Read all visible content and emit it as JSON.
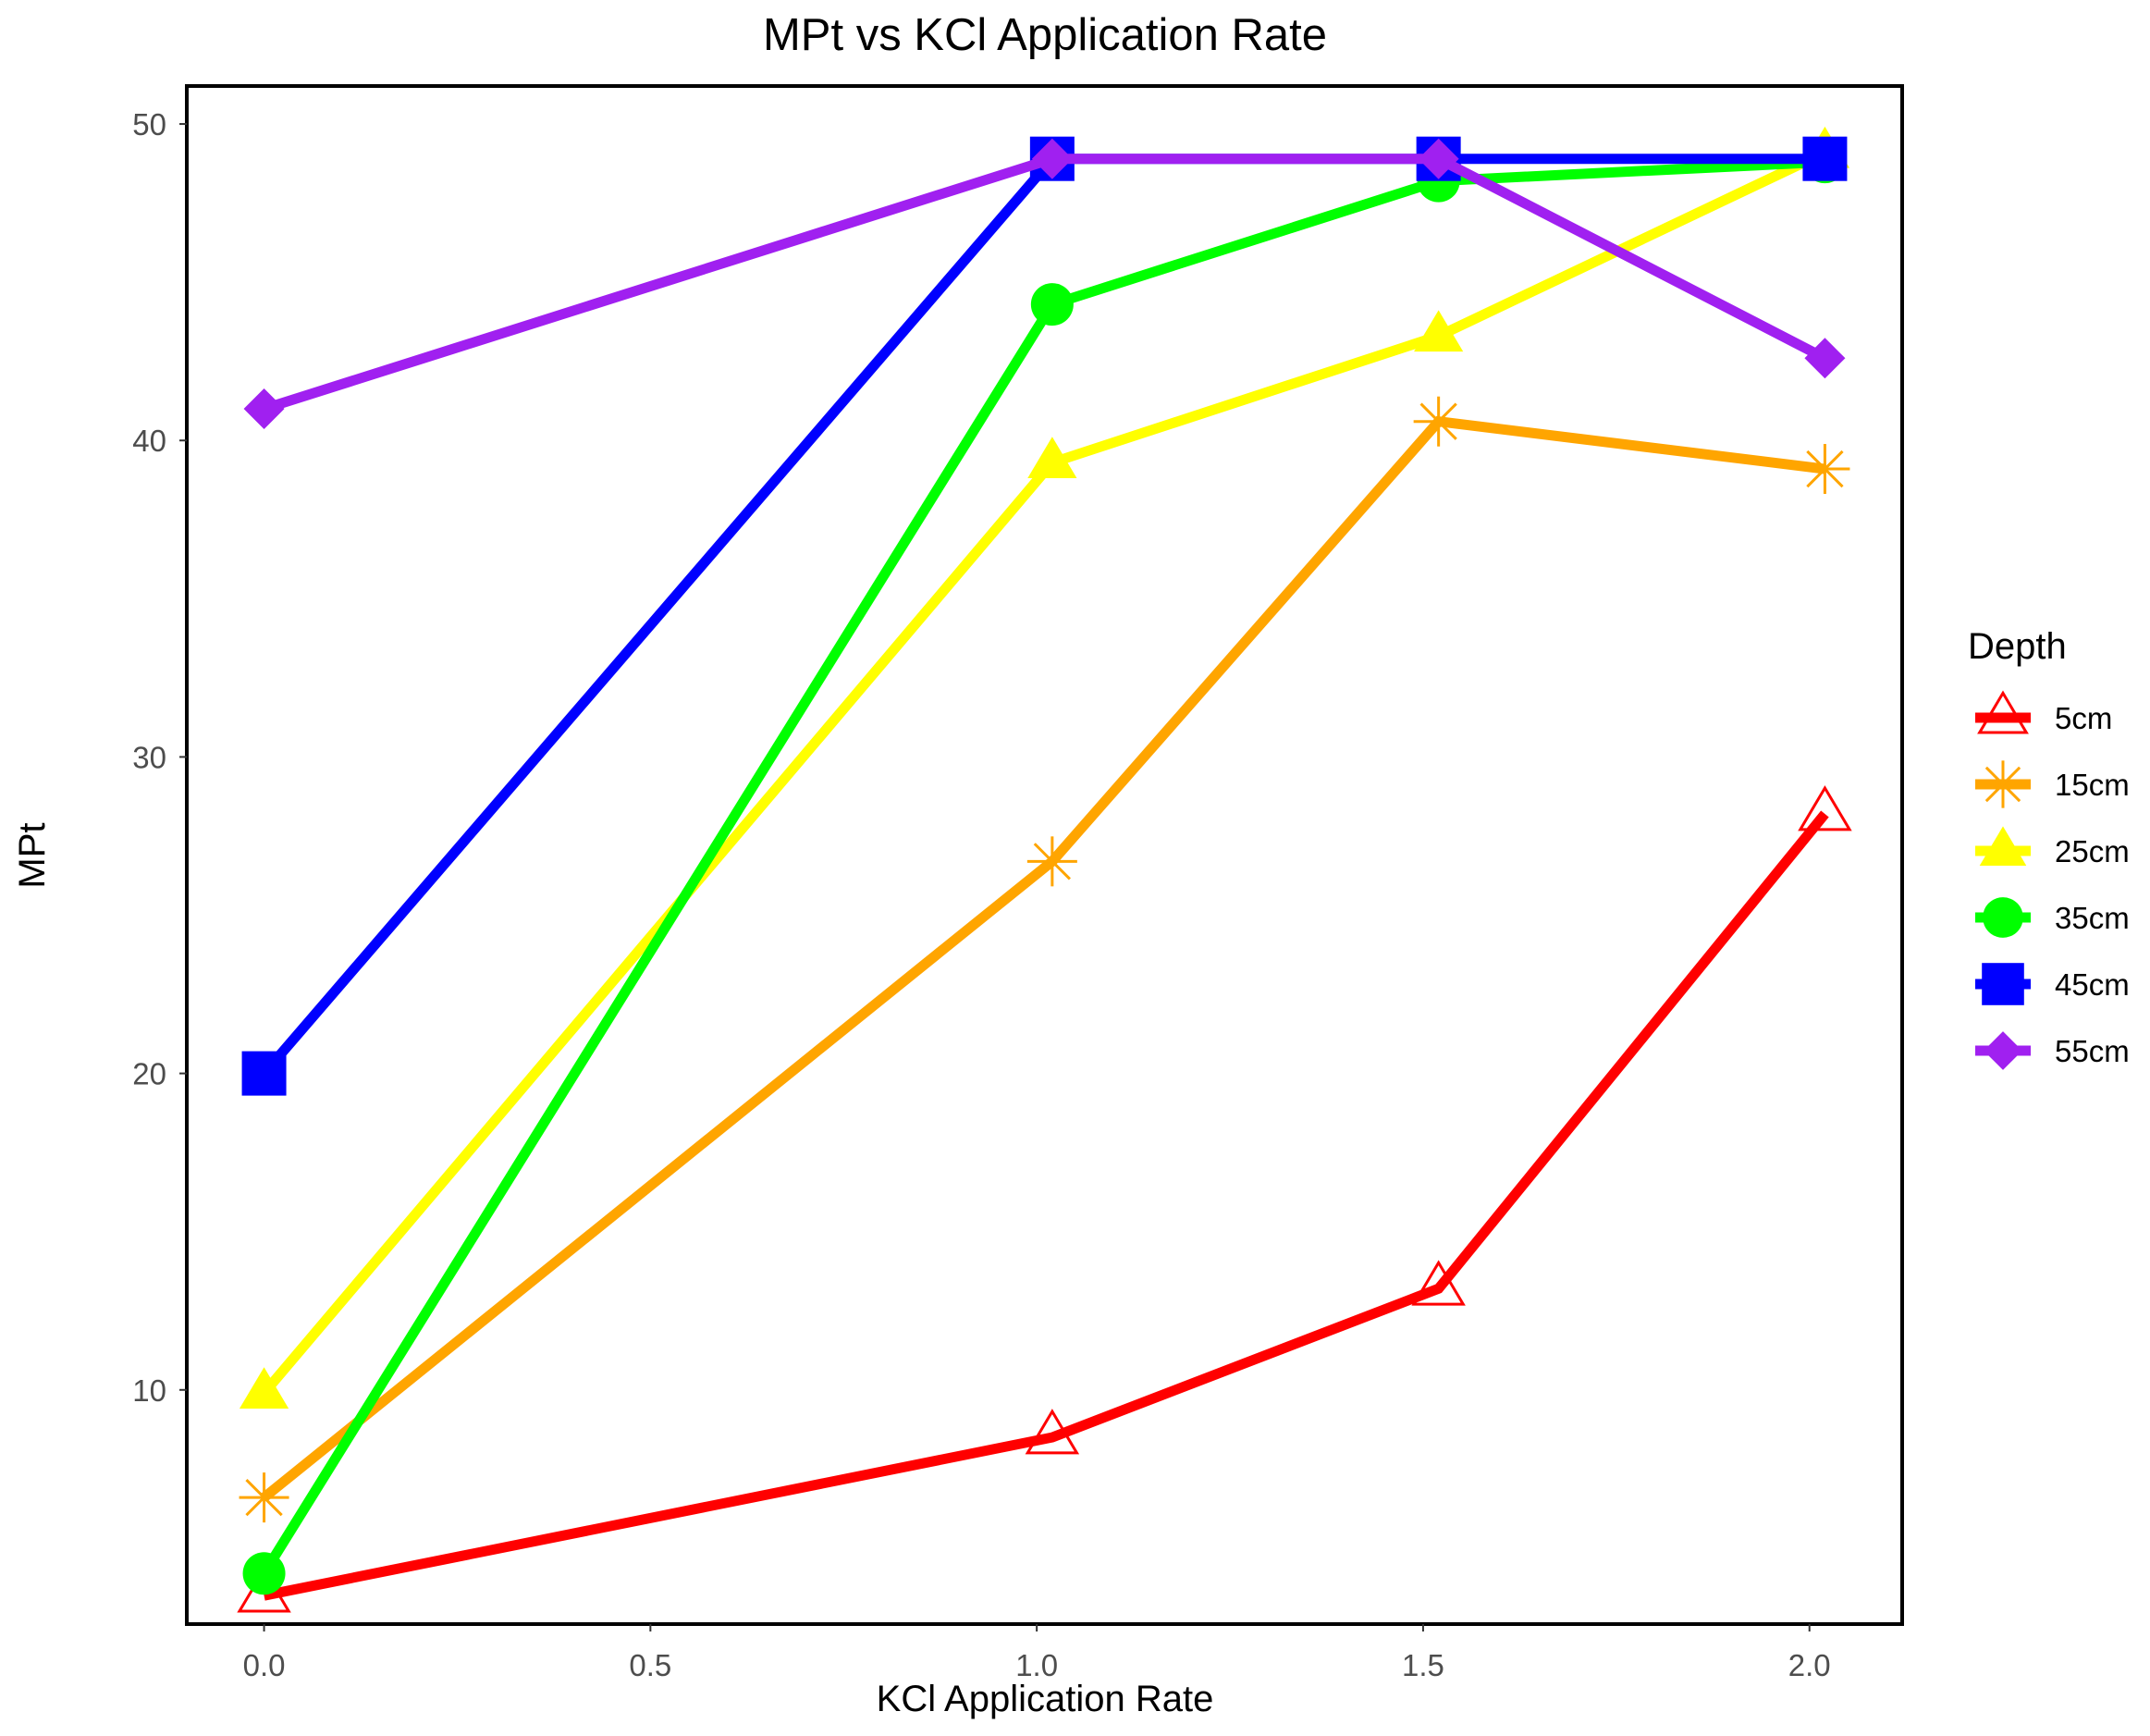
{
  "chart_data": {
    "type": "line",
    "title": "MPt vs KCl Application Rate",
    "xlabel": "KCl Application Rate",
    "ylabel": "MPt",
    "x_ticks": [
      "0.0",
      "0.5",
      "1.0",
      "1.5",
      "2.0"
    ],
    "y_ticks": [
      "10",
      "20",
      "30",
      "40",
      "50"
    ],
    "xlim": [
      -0.1,
      2.12
    ],
    "ylim": [
      2.6,
      51.2
    ],
    "grid": false,
    "legend": {
      "title": "Depth",
      "position": "right"
    },
    "series": [
      {
        "name": "5cm",
        "color": "#ff0000",
        "marker": "triangle-open",
        "x": [
          0.0,
          1.02,
          1.52,
          2.02
        ],
        "y": [
          3.5,
          8.5,
          13.2,
          28.2
        ]
      },
      {
        "name": "15cm",
        "color": "#ffa500",
        "marker": "asterisk",
        "x": [
          0.0,
          1.02,
          1.52,
          2.02
        ],
        "y": [
          6.6,
          26.7,
          40.6,
          39.1
        ]
      },
      {
        "name": "25cm",
        "color": "#ffff00",
        "marker": "triangle",
        "x": [
          0.0,
          1.02,
          1.52,
          2.02
        ],
        "y": [
          9.9,
          39.3,
          43.3,
          49.1
        ]
      },
      {
        "name": "35cm",
        "color": "#00ff00",
        "marker": "circle",
        "x": [
          0.0,
          1.02,
          1.52,
          2.02
        ],
        "y": [
          4.2,
          44.3,
          48.2,
          48.8
        ]
      },
      {
        "name": "45cm",
        "color": "#0000ff",
        "marker": "square",
        "x": [
          0.0,
          1.02,
          1.52,
          2.02
        ],
        "y": [
          20.0,
          48.9,
          48.9,
          48.9
        ]
      },
      {
        "name": "55cm",
        "color": "#a020f0",
        "marker": "diamond",
        "x": [
          0.0,
          1.02,
          1.52,
          2.02
        ],
        "y": [
          41.0,
          48.9,
          48.9,
          42.6
        ]
      }
    ]
  }
}
